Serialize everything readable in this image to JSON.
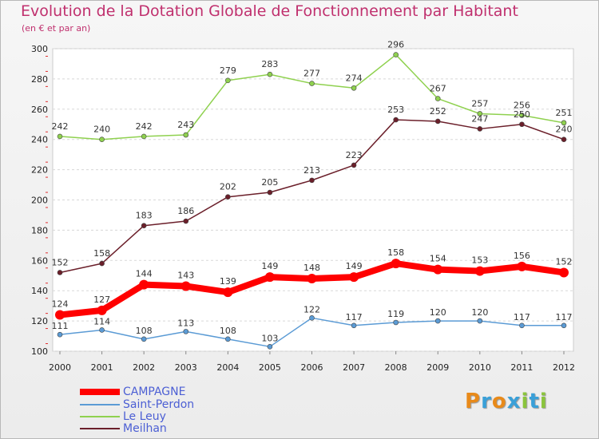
{
  "header": {
    "title": "Evolution de la Dotation Globale de Fonctionnement par Habitant",
    "subtitle": "(en € et par an)"
  },
  "logo": {
    "text": "Proxiti",
    "letters": [
      "P",
      "r",
      "o",
      "x",
      "i",
      "t",
      "i"
    ],
    "colors": [
      "#e88a1a",
      "#3aa0d8",
      "#e88a1a",
      "#3aa0d8",
      "#8ac43c",
      "#3aa0d8",
      "#8ac43c"
    ]
  },
  "chart_data": {
    "type": "line",
    "title": "Evolution de la Dotation Globale de Fonctionnement par Habitant",
    "subtitle": "(en € et par an)",
    "xlabel": "",
    "ylabel": "",
    "x": [
      "2000",
      "2001",
      "2002",
      "2003",
      "2004",
      "2005",
      "2006",
      "2007",
      "2008",
      "2009",
      "2010",
      "2011",
      "2012"
    ],
    "ylim": [
      100,
      300
    ],
    "yticks": [
      "100",
      "120",
      "140",
      "160",
      "180",
      "200",
      "220",
      "240",
      "260",
      "280",
      "300"
    ],
    "grid": "horizontal dashed",
    "legend_position": "bottom-left",
    "series": [
      {
        "name": "CAMPAGNE",
        "color": "#ff0000",
        "values": [
          124,
          127,
          144,
          143,
          139,
          149,
          148,
          149,
          158,
          154,
          153,
          156,
          152
        ],
        "labels": [
          "124",
          "127",
          "144",
          "143",
          "139",
          "149",
          "148",
          "149",
          "158",
          "154",
          "153",
          "156",
          "152"
        ]
      },
      {
        "name": "Saint-Perdon",
        "color": "#5b9bd5",
        "values": [
          111,
          114,
          108,
          113,
          108,
          103,
          122,
          117,
          119,
          120,
          120,
          117,
          117
        ],
        "labels": [
          "111",
          "114",
          "108",
          "113",
          "108",
          "103",
          "122",
          "117",
          "119",
          "120",
          "120",
          "117",
          "117"
        ]
      },
      {
        "name": "Le Leuy",
        "color": "#8fd14f",
        "values": [
          242,
          240,
          242,
          243,
          279,
          283,
          277,
          274,
          296,
          267,
          257,
          256,
          251
        ],
        "labels": [
          "242",
          "240",
          "242",
          "243",
          "279",
          "283",
          "277",
          "274",
          "296",
          "267",
          "257",
          "256",
          "251"
        ]
      },
      {
        "name": "Meilhan",
        "color": "#6b1f2a",
        "values": [
          152,
          158,
          183,
          186,
          202,
          205,
          213,
          223,
          253,
          252,
          247,
          250,
          240
        ],
        "labels": [
          "152",
          "158",
          "183",
          "186",
          "202",
          "205",
          "213",
          "223",
          "253",
          "252",
          "247",
          "250",
          "240"
        ]
      }
    ]
  }
}
